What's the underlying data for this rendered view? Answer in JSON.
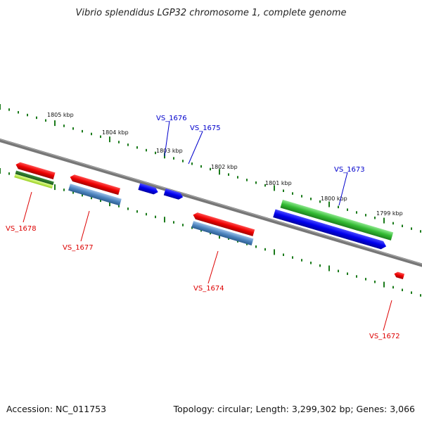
{
  "title": "Vibrio splendidus LGP32 chromosome 1, complete genome",
  "footer": {
    "accession": "Accession: NC_011753",
    "stats": "Topology: circular; Length: 3,299,302 bp; Genes: 3,066"
  },
  "scale_labels": [
    "1805 kbp",
    "1804 kbp",
    "1803 kbp",
    "1802 kbp",
    "1801 kbp",
    "1800 kbp",
    "1799 kbp"
  ],
  "genes": {
    "vs1678": "VS_1678",
    "vs1677": "VS_1677",
    "vs1676": "VS_1676",
    "vs1675": "VS_1675",
    "vs1674": "VS_1674",
    "vs1673": "VS_1673",
    "vs1672": "VS_1672"
  },
  "colors": {
    "backbone": "#777777",
    "tick": "#1a7a1a",
    "cds_forward": "#0000ff",
    "cds_reverse": "#ff0000",
    "gene_green": "#33bb33",
    "gene_steelblue": "#4f86c0",
    "label_forward": "#0000cc",
    "label_reverse": "#dd0000"
  }
}
